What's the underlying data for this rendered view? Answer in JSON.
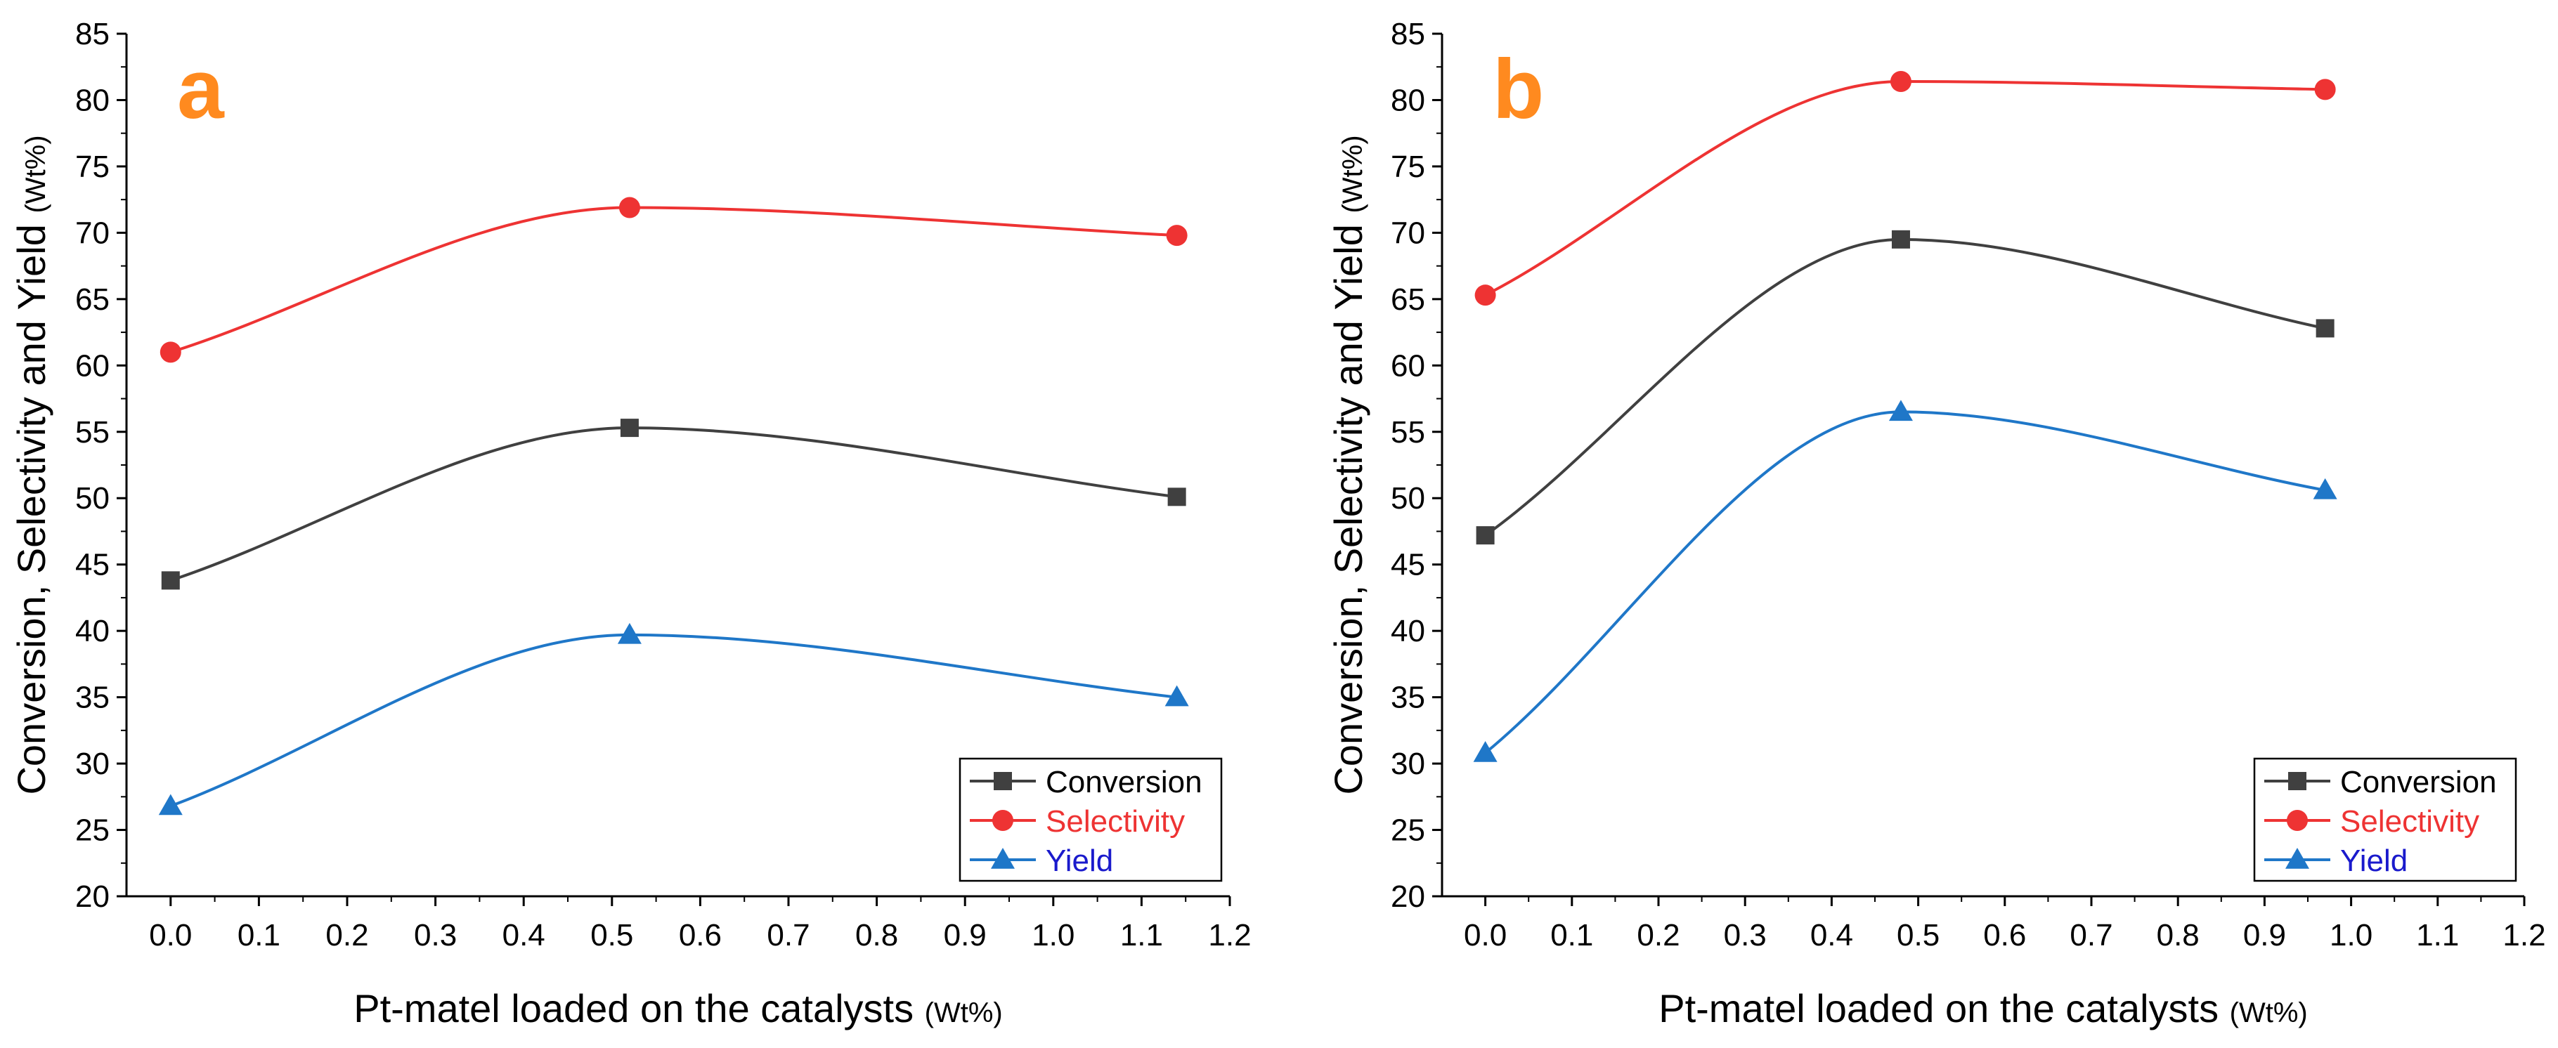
{
  "chart_data": [
    {
      "type": "line",
      "panel_label": "a",
      "xlabel": "Pt-matel loaded on the catalysts",
      "xlabel_unit": "(Wt%)",
      "ylabel": "Conversion, Selectivity and Yield",
      "ylabel_unit": "(Wt%)",
      "xlim": [
        -0.05,
        1.2
      ],
      "ylim": [
        20,
        85
      ],
      "xticks": [
        0.0,
        0.1,
        0.2,
        0.3,
        0.4,
        0.5,
        0.6,
        0.7,
        0.8,
        0.9,
        1.0,
        1.1,
        1.2
      ],
      "xtick_labels": [
        "0.0",
        "0.1",
        "0.2",
        "0.3",
        "0.4",
        "0.5",
        "0.6",
        "0.7",
        "0.8",
        "0.9",
        "1.0",
        "1.1",
        "1.2"
      ],
      "yticks": [
        20,
        25,
        30,
        35,
        40,
        45,
        50,
        55,
        60,
        65,
        70,
        75,
        80,
        85
      ],
      "ytick_labels": [
        "20",
        "25",
        "30",
        "35",
        "40",
        "45",
        "50",
        "55",
        "60",
        "65",
        "70",
        "75",
        "80",
        "85"
      ],
      "legend_position": "bottom-right",
      "x": [
        0.0,
        0.52,
        1.14
      ],
      "series": [
        {
          "name": "Conversion",
          "values": [
            43.8,
            55.3,
            50.1
          ],
          "color": "#404040",
          "marker": "square"
        },
        {
          "name": "Selectivity",
          "values": [
            61.0,
            71.9,
            69.8
          ],
          "color": "#ee3333",
          "marker": "circle"
        },
        {
          "name": "Yield",
          "values": [
            26.8,
            39.7,
            35.0
          ],
          "color": "#1f77c8",
          "marker": "triangle"
        }
      ]
    },
    {
      "type": "line",
      "panel_label": "b",
      "xlabel": "Pt-matel loaded on the catalysts",
      "xlabel_unit": "(Wt%)",
      "ylabel": "Conversion, Selectivity and Yield",
      "ylabel_unit": "(Wt%)",
      "xlim": [
        -0.05,
        1.2
      ],
      "ylim": [
        20,
        85
      ],
      "xticks": [
        0.0,
        0.1,
        0.2,
        0.3,
        0.4,
        0.5,
        0.6,
        0.7,
        0.8,
        0.9,
        1.0,
        1.1,
        1.2
      ],
      "xtick_labels": [
        "0.0",
        "0.1",
        "0.2",
        "0.3",
        "0.4",
        "0.5",
        "0.6",
        "0.7",
        "0.8",
        "0.9",
        "1.0",
        "1.1",
        "1.2"
      ],
      "yticks": [
        20,
        25,
        30,
        35,
        40,
        45,
        50,
        55,
        60,
        65,
        70,
        75,
        80,
        85
      ],
      "ytick_labels": [
        "20",
        "25",
        "30",
        "35",
        "40",
        "45",
        "50",
        "55",
        "60",
        "65",
        "70",
        "75",
        "80",
        "85"
      ],
      "legend_position": "bottom-right",
      "x": [
        0.0,
        0.48,
        0.97
      ],
      "series": [
        {
          "name": "Conversion",
          "values": [
            47.2,
            69.5,
            62.8
          ],
          "color": "#404040",
          "marker": "square"
        },
        {
          "name": "Selectivity",
          "values": [
            65.3,
            81.4,
            80.8
          ],
          "color": "#ee3333",
          "marker": "circle"
        },
        {
          "name": "Yield",
          "values": [
            30.8,
            56.5,
            50.6
          ],
          "color": "#1f77c8",
          "marker": "triangle"
        }
      ]
    }
  ],
  "colors": {
    "panel_letter": "#ff8a1f",
    "legend_text_conversion": "#000000",
    "legend_text_selectivity": "#ee3333",
    "legend_text_yield": "#1a1acc"
  }
}
